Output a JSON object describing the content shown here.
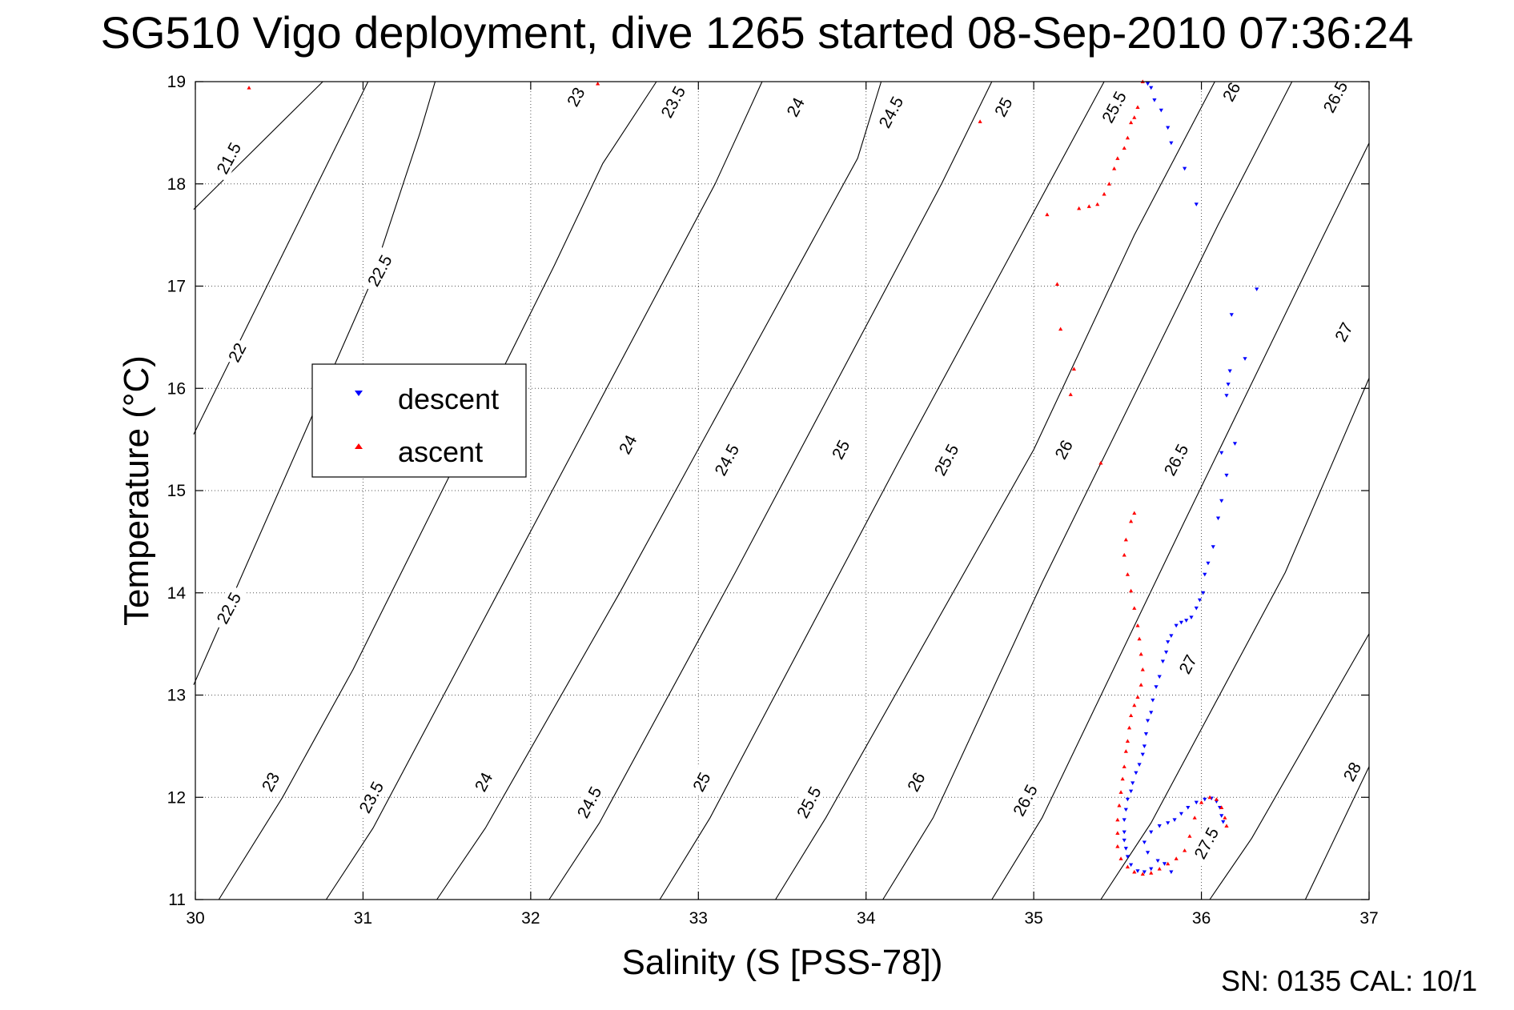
{
  "title": "SG510 Vigo deployment, dive 1265 started 08-Sep-2010 07:36:24",
  "footer": "SN: 0135  CAL: 10/1",
  "chart_data": {
    "type": "scatter",
    "title": "SG510 Vigo deployment, dive 1265 started 08-Sep-2010 07:36:24",
    "xlabel": "Salinity (S [PSS-78])",
    "ylabel": "Temperature (°C)",
    "xlim": [
      30,
      37
    ],
    "ylim": [
      11,
      19
    ],
    "xticks": [
      30,
      31,
      32,
      33,
      34,
      35,
      36,
      37
    ],
    "yticks": [
      11,
      12,
      13,
      14,
      15,
      16,
      17,
      18,
      19
    ],
    "grid": true,
    "legend": {
      "position": "left-middle",
      "entries": [
        "descent",
        "ascent"
      ]
    },
    "colors": {
      "descent": "#0000ff",
      "ascent": "#ff0000"
    },
    "series": [
      {
        "name": "descent",
        "marker": "triangle-down",
        "points": [
          [
            35.68,
            18.98
          ],
          [
            35.7,
            18.94
          ],
          [
            35.72,
            18.82
          ],
          [
            35.76,
            18.72
          ],
          [
            35.8,
            18.55
          ],
          [
            35.82,
            18.4
          ],
          [
            35.9,
            18.15
          ],
          [
            35.97,
            17.8
          ],
          [
            36.33,
            16.97
          ],
          [
            36.18,
            16.72
          ],
          [
            36.26,
            16.29
          ],
          [
            36.17,
            16.17
          ],
          [
            36.16,
            16.04
          ],
          [
            36.15,
            15.93
          ],
          [
            36.2,
            15.46
          ],
          [
            36.12,
            15.37
          ],
          [
            36.15,
            15.15
          ],
          [
            36.12,
            14.9
          ],
          [
            36.1,
            14.73
          ],
          [
            36.07,
            14.45
          ],
          [
            36.04,
            14.29
          ],
          [
            36.02,
            14.18
          ],
          [
            36.01,
            14.0
          ],
          [
            35.99,
            13.93
          ],
          [
            35.97,
            13.85
          ],
          [
            35.94,
            13.76
          ],
          [
            35.91,
            13.73
          ],
          [
            35.88,
            13.71
          ],
          [
            35.85,
            13.68
          ],
          [
            35.82,
            13.58
          ],
          [
            35.8,
            13.52
          ],
          [
            35.79,
            13.42
          ],
          [
            35.77,
            13.33
          ],
          [
            35.75,
            13.18
          ],
          [
            35.73,
            13.08
          ],
          [
            35.71,
            12.95
          ],
          [
            35.7,
            12.83
          ],
          [
            35.68,
            12.75
          ],
          [
            35.67,
            12.62
          ],
          [
            35.66,
            12.5
          ],
          [
            35.65,
            12.42
          ],
          [
            35.63,
            12.32
          ],
          [
            35.61,
            12.24
          ],
          [
            35.59,
            12.14
          ],
          [
            35.58,
            12.06
          ],
          [
            35.56,
            11.98
          ],
          [
            35.55,
            11.88
          ],
          [
            35.54,
            11.78
          ],
          [
            35.54,
            11.66
          ],
          [
            35.54,
            11.58
          ],
          [
            35.55,
            11.5
          ],
          [
            35.56,
            11.42
          ],
          [
            35.58,
            11.34
          ],
          [
            35.62,
            11.28
          ],
          [
            35.66,
            11.27
          ],
          [
            35.7,
            11.3
          ],
          [
            35.74,
            11.38
          ],
          [
            35.68,
            11.46
          ],
          [
            35.66,
            11.56
          ],
          [
            35.7,
            11.66
          ],
          [
            35.75,
            11.72
          ],
          [
            35.8,
            11.75
          ],
          [
            35.84,
            11.78
          ],
          [
            35.88,
            11.84
          ],
          [
            35.92,
            11.9
          ],
          [
            35.97,
            11.95
          ],
          [
            36.02,
            11.98
          ],
          [
            36.06,
            11.99
          ],
          [
            36.09,
            11.96
          ],
          [
            36.11,
            11.9
          ],
          [
            36.12,
            11.82
          ],
          [
            36.13,
            11.76
          ],
          [
            35.82,
            11.27
          ],
          [
            35.78,
            11.35
          ]
        ]
      },
      {
        "name": "ascent",
        "marker": "triangle-up",
        "points": [
          [
            30.32,
            18.94
          ],
          [
            32.4,
            18.98
          ],
          [
            34.68,
            18.61
          ],
          [
            35.65,
            19.0
          ],
          [
            35.62,
            18.75
          ],
          [
            35.6,
            18.65
          ],
          [
            35.58,
            18.6
          ],
          [
            35.56,
            18.45
          ],
          [
            35.54,
            18.35
          ],
          [
            35.5,
            18.25
          ],
          [
            35.48,
            18.15
          ],
          [
            35.45,
            18.0
          ],
          [
            35.42,
            17.9
          ],
          [
            35.38,
            17.8
          ],
          [
            35.33,
            17.78
          ],
          [
            35.27,
            17.76
          ],
          [
            35.08,
            17.7
          ],
          [
            35.14,
            17.02
          ],
          [
            35.16,
            16.58
          ],
          [
            35.24,
            16.19
          ],
          [
            35.22,
            15.94
          ],
          [
            35.4,
            15.27
          ],
          [
            35.6,
            14.78
          ],
          [
            35.58,
            14.7
          ],
          [
            35.55,
            14.52
          ],
          [
            35.54,
            14.37
          ],
          [
            35.56,
            14.18
          ],
          [
            35.58,
            14.02
          ],
          [
            35.6,
            13.85
          ],
          [
            35.62,
            13.68
          ],
          [
            35.63,
            13.55
          ],
          [
            35.64,
            13.4
          ],
          [
            35.65,
            13.25
          ],
          [
            35.64,
            13.1
          ],
          [
            35.62,
            12.98
          ],
          [
            35.6,
            12.9
          ],
          [
            35.58,
            12.8
          ],
          [
            35.57,
            12.68
          ],
          [
            35.56,
            12.55
          ],
          [
            35.55,
            12.45
          ],
          [
            35.54,
            12.3
          ],
          [
            35.53,
            12.18
          ],
          [
            35.52,
            12.05
          ],
          [
            35.51,
            11.92
          ],
          [
            35.5,
            11.78
          ],
          [
            35.5,
            11.65
          ],
          [
            35.5,
            11.52
          ],
          [
            35.52,
            11.4
          ],
          [
            35.56,
            11.32
          ],
          [
            35.6,
            11.27
          ],
          [
            35.65,
            11.25
          ],
          [
            35.7,
            11.26
          ],
          [
            35.75,
            11.3
          ],
          [
            35.8,
            11.35
          ],
          [
            35.85,
            11.4
          ],
          [
            35.9,
            11.48
          ],
          [
            35.93,
            11.62
          ],
          [
            35.96,
            11.8
          ],
          [
            36.0,
            11.95
          ],
          [
            36.05,
            12.0
          ],
          [
            36.09,
            11.98
          ],
          [
            36.12,
            11.9
          ],
          [
            36.14,
            11.8
          ],
          [
            36.15,
            11.72
          ]
        ]
      }
    ],
    "density_contours": [
      {
        "value": "21.5",
        "line": [
          [
            29.99,
            17.75
          ],
          [
            30.76,
            19.0
          ]
        ]
      },
      {
        "value": "22",
        "line": [
          [
            29.99,
            15.55
          ],
          [
            31.03,
            19.0
          ]
        ]
      },
      {
        "value": "22.5",
        "line": [
          [
            29.99,
            13.1
          ],
          [
            31.04,
            17.01
          ],
          [
            31.34,
            18.5
          ],
          [
            31.43,
            19.0
          ]
        ]
      },
      {
        "value": "23",
        "line": [
          [
            30.14,
            11.0
          ],
          [
            30.52,
            12.0
          ],
          [
            30.94,
            13.25
          ],
          [
            32.14,
            17.2
          ],
          [
            32.43,
            18.2
          ],
          [
            32.75,
            19.0
          ]
        ]
      },
      {
        "value": "23.5",
        "line": [
          [
            30.78,
            11.0
          ],
          [
            31.06,
            11.7
          ],
          [
            33.1,
            18.0
          ],
          [
            33.38,
            19.0
          ]
        ]
      },
      {
        "value": "24",
        "line": [
          [
            31.44,
            11.0
          ],
          [
            31.73,
            11.7
          ],
          [
            32.53,
            14.0
          ],
          [
            33.95,
            18.25
          ],
          [
            34.09,
            19.0
          ]
        ]
      },
      {
        "value": "24.5",
        "line": [
          [
            32.11,
            11.0
          ],
          [
            32.41,
            11.75
          ],
          [
            33.22,
            14.2
          ],
          [
            34.45,
            18.0
          ],
          [
            34.75,
            19.0
          ]
        ]
      },
      {
        "value": "25",
        "line": [
          [
            32.77,
            11.0
          ],
          [
            33.07,
            11.8
          ],
          [
            34.2,
            15.3
          ],
          [
            35.42,
            19.0
          ]
        ]
      },
      {
        "value": "25.5",
        "line": [
          [
            33.46,
            11.0
          ],
          [
            33.76,
            11.8
          ],
          [
            35.0,
            15.4
          ],
          [
            35.6,
            17.5
          ],
          [
            36.08,
            19.0
          ]
        ]
      },
      {
        "value": "26",
        "line": [
          [
            34.1,
            11.0
          ],
          [
            34.4,
            11.8
          ],
          [
            35.05,
            14.1
          ],
          [
            36.1,
            17.6
          ],
          [
            36.54,
            19.0
          ]
        ]
      },
      {
        "value": "26.5",
        "line": [
          [
            34.75,
            11.0
          ],
          [
            35.05,
            11.8
          ],
          [
            35.9,
            14.7
          ],
          [
            36.7,
            17.4
          ],
          [
            37.0,
            18.4
          ]
        ]
      },
      {
        "value": "27",
        "line": [
          [
            35.4,
            11.0
          ],
          [
            35.7,
            11.75
          ],
          [
            36.5,
            14.2
          ],
          [
            37.0,
            16.1
          ]
        ]
      },
      {
        "value": "27.5",
        "line": [
          [
            36.05,
            11.0
          ],
          [
            36.3,
            11.6
          ],
          [
            37.0,
            13.6
          ]
        ]
      },
      {
        "value": "28",
        "line": [
          [
            36.62,
            11.0
          ],
          [
            37.0,
            12.3
          ]
        ]
      }
    ],
    "contour_labels": [
      {
        "value": "21.5",
        "x": 30.2,
        "y": 18.25
      },
      {
        "value": "22",
        "x": 30.25,
        "y": 16.35
      },
      {
        "value": "22.5",
        "x": 31.1,
        "y": 17.15
      },
      {
        "value": "22.5",
        "x": 30.2,
        "y": 13.85
      },
      {
        "value": "23",
        "x": 32.27,
        "y": 18.85
      },
      {
        "value": "23",
        "x": 30.45,
        "y": 12.15
      },
      {
        "value": "23.5",
        "x": 32.85,
        "y": 18.8
      },
      {
        "value": "23.5",
        "x": 31.05,
        "y": 12.0
      },
      {
        "value": "24",
        "x": 33.58,
        "y": 18.75
      },
      {
        "value": "24",
        "x": 32.58,
        "y": 15.45
      },
      {
        "value": "24",
        "x": 31.72,
        "y": 12.15
      },
      {
        "value": "24.5",
        "x": 34.15,
        "y": 18.7
      },
      {
        "value": "24.5",
        "x": 33.17,
        "y": 15.3
      },
      {
        "value": "24.5",
        "x": 32.35,
        "y": 11.95
      },
      {
        "value": "25",
        "x": 34.82,
        "y": 18.75
      },
      {
        "value": "25",
        "x": 33.85,
        "y": 15.4
      },
      {
        "value": "25",
        "x": 33.02,
        "y": 12.15
      },
      {
        "value": "25.5",
        "x": 35.48,
        "y": 18.75
      },
      {
        "value": "25.5",
        "x": 34.48,
        "y": 15.3
      },
      {
        "value": "25.5",
        "x": 33.66,
        "y": 11.95
      },
      {
        "value": "26",
        "x": 36.18,
        "y": 18.9
      },
      {
        "value": "26",
        "x": 35.18,
        "y": 15.4
      },
      {
        "value": "26",
        "x": 34.3,
        "y": 12.15
      },
      {
        "value": "26.5",
        "x": 36.8,
        "y": 18.85
      },
      {
        "value": "26.5",
        "x": 35.85,
        "y": 15.3
      },
      {
        "value": "26.5",
        "x": 34.95,
        "y": 11.97
      },
      {
        "value": "27",
        "x": 36.85,
        "y": 16.55
      },
      {
        "value": "27",
        "x": 35.92,
        "y": 13.3
      },
      {
        "value": "27.5",
        "x": 36.03,
        "y": 11.55
      },
      {
        "value": "28",
        "x": 36.9,
        "y": 12.25
      }
    ]
  }
}
